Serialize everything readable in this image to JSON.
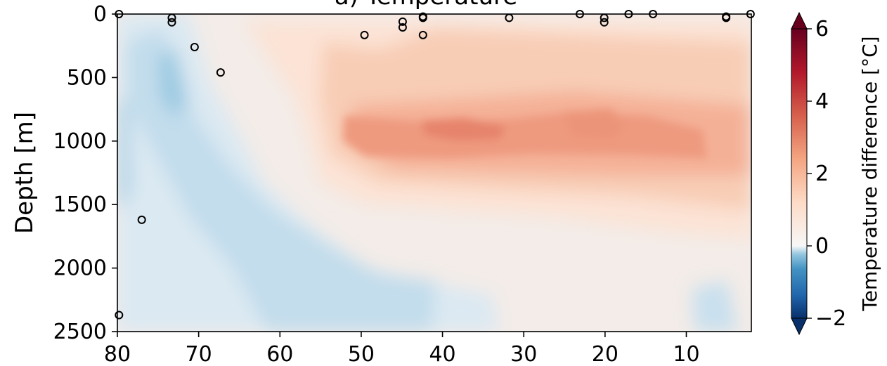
{
  "chart_data": {
    "type": "heatmap",
    "subtype": "filled-contour-section",
    "title": "a) Temperature",
    "xlabel": "",
    "ylabel": "Depth [m]",
    "xlim": [
      80,
      2
    ],
    "ylim": [
      2500,
      0
    ],
    "x_ticks": [
      80,
      70,
      60,
      50,
      40,
      30,
      20,
      10
    ],
    "y_ticks": [
      0,
      500,
      1000,
      1500,
      2000,
      2500
    ],
    "y_inverted": true,
    "colorbar": {
      "label": "Temperature difference [$^\\circ$C]",
      "label_display": "Temperature difference [°C]",
      "vmin": -2,
      "vmax": 6,
      "ticks": [
        -2,
        0,
        2,
        4,
        6
      ],
      "colormap": "RdBu_r",
      "extend": "both",
      "colors": {
        "min": "#08306b",
        "neg": "#4393c3",
        "zero": "#f7f7f7",
        "pos": "#f4a582",
        "max": "#67001f"
      }
    },
    "field_features": [
      {
        "name": "warm core",
        "x_range": [
          56,
          5
        ],
        "depth_range": [
          700,
          1300
        ],
        "value": 2.8
      },
      {
        "name": "cold tongue",
        "x_range": [
          80,
          40
        ],
        "depth_range": [
          0,
          2500
        ],
        "value": -0.8
      },
      {
        "name": "cold deep patch",
        "x_range": [
          9,
          4
        ],
        "depth_range": [
          2100,
          2500
        ],
        "value": -0.5
      }
    ],
    "stations": [
      {
        "x": 79.8,
        "depth": 0
      },
      {
        "x": 79.8,
        "depth": 2370
      },
      {
        "x": 77.0,
        "depth": 1620
      },
      {
        "x": 73.3,
        "depth": 30
      },
      {
        "x": 73.3,
        "depth": 65
      },
      {
        "x": 70.5,
        "depth": 260
      },
      {
        "x": 67.3,
        "depth": 460
      },
      {
        "x": 49.6,
        "depth": 165
      },
      {
        "x": 44.9,
        "depth": 60
      },
      {
        "x": 44.9,
        "depth": 105
      },
      {
        "x": 42.4,
        "depth": 20
      },
      {
        "x": 42.4,
        "depth": 30
      },
      {
        "x": 42.4,
        "depth": 165
      },
      {
        "x": 31.8,
        "depth": 30
      },
      {
        "x": 23.1,
        "depth": 0
      },
      {
        "x": 20.1,
        "depth": 30
      },
      {
        "x": 20.1,
        "depth": 65
      },
      {
        "x": 17.1,
        "depth": 0
      },
      {
        "x": 14.1,
        "depth": 0
      },
      {
        "x": 5.1,
        "depth": 20
      },
      {
        "x": 5.1,
        "depth": 30
      },
      {
        "x": 2.1,
        "depth": 0
      }
    ]
  }
}
